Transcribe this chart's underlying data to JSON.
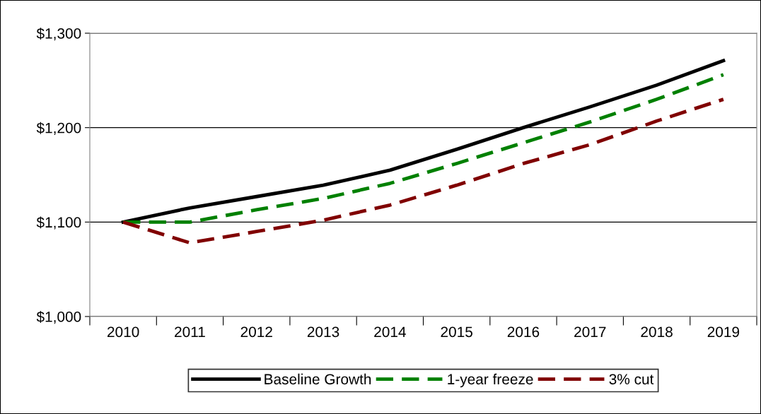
{
  "chart_data": {
    "type": "line",
    "categories": [
      "2010",
      "2011",
      "2012",
      "2013",
      "2014",
      "2015",
      "2016",
      "2017",
      "2018",
      "2019"
    ],
    "series": [
      {
        "name": "Baseline Growth",
        "color": "#000000",
        "line_style": "solid",
        "values": [
          1100,
          1115,
          1127,
          1139,
          1155,
          1177,
          1200,
          1222,
          1245,
          1271
        ]
      },
      {
        "name": "1-year freeze",
        "color": "#008000",
        "line_style": "dashed",
        "values": [
          1100,
          1100,
          1113,
          1125,
          1141,
          1162,
          1184,
          1206,
          1230,
          1256
        ]
      },
      {
        "name": "3% cut",
        "color": "#800000",
        "line_style": "dashed",
        "values": [
          1100,
          1078,
          1090,
          1102,
          1118,
          1139,
          1162,
          1182,
          1207,
          1230
        ]
      }
    ],
    "ylim": [
      1000,
      1300
    ],
    "yticks": [
      {
        "value": 1000,
        "label": "$1,000"
      },
      {
        "value": 1100,
        "label": "$1,100"
      },
      {
        "value": 1200,
        "label": "$1,200"
      },
      {
        "value": 1300,
        "label": "$1,300"
      }
    ],
    "grid": "y",
    "legend": "bottom",
    "marker": "none"
  }
}
